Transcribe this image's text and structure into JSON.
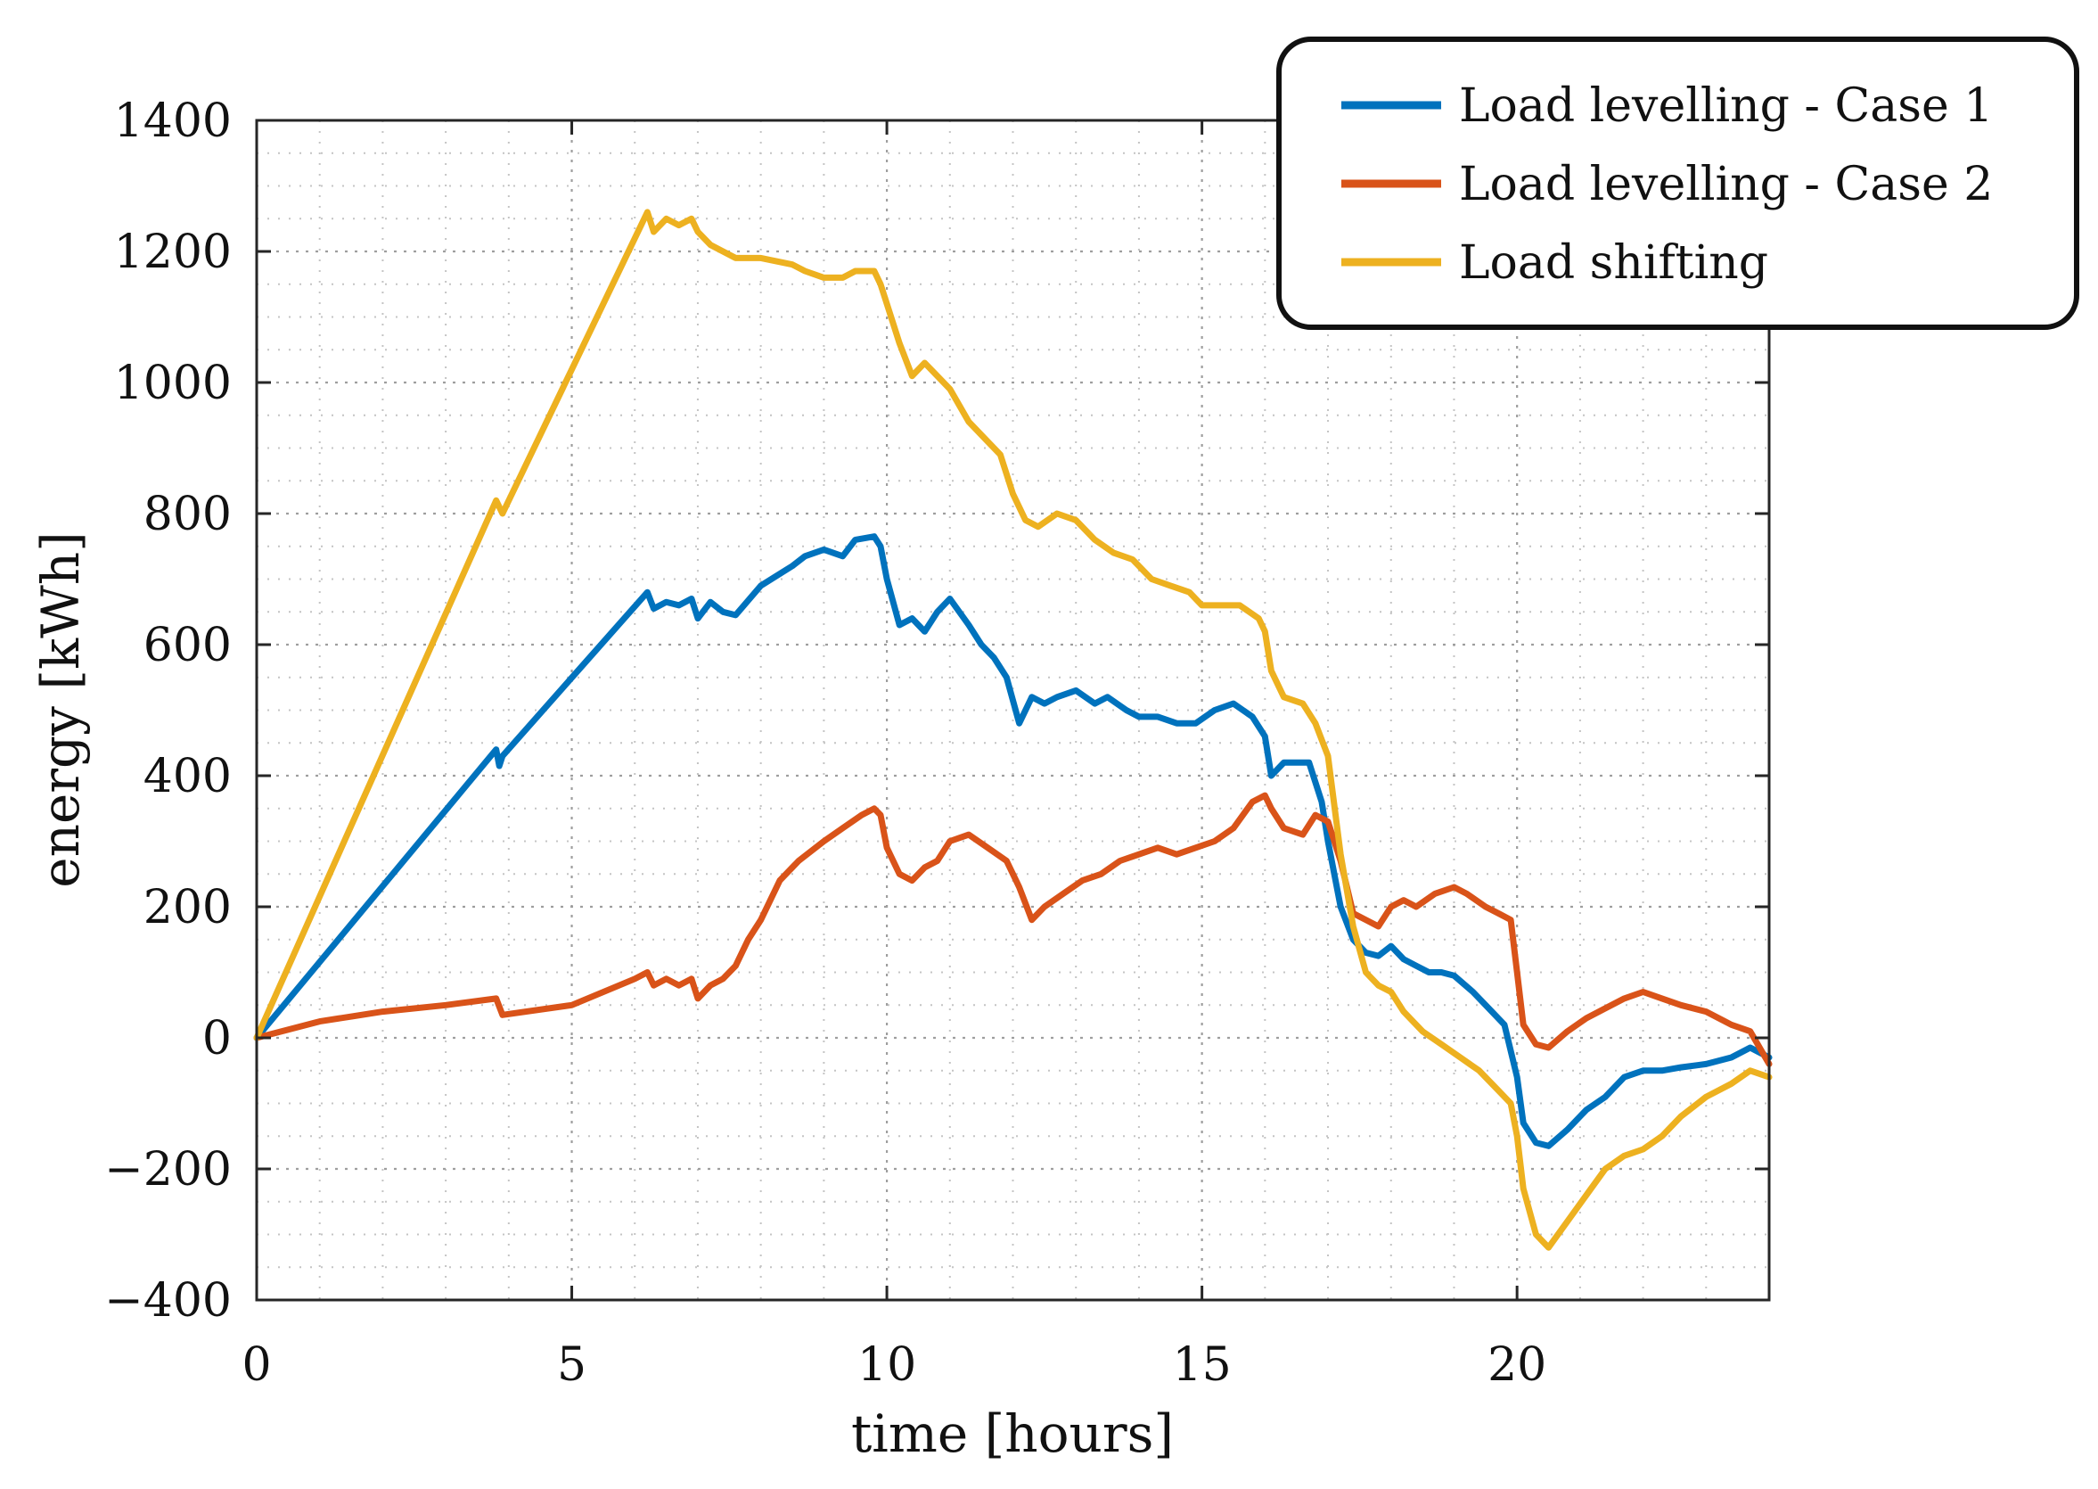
{
  "chart_data": {
    "type": "line",
    "title": "",
    "xlabel": "time [hours]",
    "ylabel": "energy [kWh]",
    "xlim": [
      0,
      24
    ],
    "ylim": [
      -400,
      1400
    ],
    "xticks": [
      0,
      5,
      10,
      15,
      20
    ],
    "yticks": [
      -400,
      -200,
      0,
      200,
      400,
      600,
      800,
      1000,
      1200,
      1400
    ],
    "ytick_labels": [
      "−400",
      "−200",
      "0",
      "200",
      "400",
      "600",
      "800",
      "1000",
      "1200",
      "1400"
    ],
    "grid": true,
    "minor_grid": true,
    "legend_position": "top-right",
    "series": [
      {
        "name": "Load levelling - Case 1",
        "color": "#0072BD",
        "x": [
          0,
          3.8,
          3.85,
          3.9,
          6.2,
          6.3,
          6.5,
          6.7,
          6.9,
          7.0,
          7.2,
          7.4,
          7.6,
          8.0,
          8.5,
          8.7,
          9.0,
          9.3,
          9.5,
          9.8,
          9.9,
          10.0,
          10.2,
          10.4,
          10.6,
          10.8,
          11.0,
          11.3,
          11.5,
          11.7,
          11.9,
          12.1,
          12.3,
          12.5,
          12.7,
          13.0,
          13.3,
          13.5,
          13.8,
          14.0,
          14.3,
          14.6,
          14.9,
          15.2,
          15.5,
          15.8,
          16.0,
          16.1,
          16.3,
          16.5,
          16.7,
          16.9,
          17.0,
          17.2,
          17.4,
          17.6,
          17.8,
          18.0,
          18.2,
          18.4,
          18.6,
          18.8,
          19.0,
          19.3,
          19.6,
          19.8,
          20.0,
          20.1,
          20.3,
          20.5,
          20.8,
          21.1,
          21.4,
          21.7,
          22.0,
          22.3,
          22.6,
          23.0,
          23.4,
          23.7,
          24.0
        ],
        "y": [
          0,
          440,
          415,
          430,
          680,
          655,
          665,
          660,
          670,
          640,
          665,
          650,
          645,
          690,
          720,
          735,
          745,
          735,
          760,
          765,
          750,
          700,
          630,
          640,
          620,
          650,
          670,
          630,
          600,
          580,
          550,
          480,
          520,
          510,
          520,
          530,
          510,
          520,
          500,
          490,
          490,
          480,
          480,
          500,
          510,
          490,
          460,
          400,
          420,
          420,
          420,
          360,
          300,
          200,
          150,
          130,
          125,
          140,
          120,
          110,
          100,
          100,
          95,
          70,
          40,
          20,
          -60,
          -130,
          -160,
          -165,
          -140,
          -110,
          -90,
          -60,
          -50,
          -50,
          -45,
          -40,
          -30,
          -15,
          -30
        ]
      },
      {
        "name": "Load levelling - Case 2",
        "color": "#D95319",
        "x": [
          0,
          1.0,
          2.0,
          3.0,
          3.8,
          3.9,
          5.0,
          6.0,
          6.2,
          6.3,
          6.5,
          6.7,
          6.9,
          7.0,
          7.2,
          7.4,
          7.6,
          7.8,
          8.0,
          8.3,
          8.6,
          9.0,
          9.3,
          9.6,
          9.8,
          9.9,
          10.0,
          10.2,
          10.4,
          10.6,
          10.8,
          11.0,
          11.3,
          11.6,
          11.9,
          12.1,
          12.3,
          12.5,
          12.8,
          13.1,
          13.4,
          13.7,
          14.0,
          14.3,
          14.6,
          14.9,
          15.2,
          15.5,
          15.8,
          16.0,
          16.1,
          16.3,
          16.6,
          16.8,
          17.0,
          17.2,
          17.4,
          17.6,
          17.8,
          18.0,
          18.2,
          18.4,
          18.7,
          19.0,
          19.2,
          19.5,
          19.7,
          19.9,
          20.0,
          20.1,
          20.3,
          20.5,
          20.8,
          21.1,
          21.4,
          21.7,
          22.0,
          22.3,
          22.6,
          23.0,
          23.4,
          23.7,
          24.0
        ],
        "y": [
          0,
          25,
          40,
          50,
          60,
          35,
          50,
          90,
          100,
          80,
          90,
          80,
          90,
          60,
          80,
          90,
          110,
          150,
          180,
          240,
          270,
          300,
          320,
          340,
          350,
          340,
          290,
          250,
          240,
          260,
          270,
          300,
          310,
          290,
          270,
          230,
          180,
          200,
          220,
          240,
          250,
          270,
          280,
          290,
          280,
          290,
          300,
          320,
          360,
          370,
          350,
          320,
          310,
          340,
          330,
          270,
          190,
          180,
          170,
          200,
          210,
          200,
          220,
          230,
          220,
          200,
          190,
          180,
          100,
          20,
          -10,
          -15,
          10,
          30,
          45,
          60,
          70,
          60,
          50,
          40,
          20,
          10,
          -40
        ]
      },
      {
        "name": "Load shifting",
        "color": "#EDB120",
        "x": [
          0,
          3.8,
          3.9,
          6.2,
          6.3,
          6.5,
          6.7,
          6.9,
          7.0,
          7.2,
          7.4,
          7.6,
          8.0,
          8.5,
          8.7,
          9.0,
          9.3,
          9.5,
          9.8,
          9.9,
          10.0,
          10.2,
          10.4,
          10.6,
          10.8,
          11.0,
          11.3,
          11.6,
          11.8,
          12.0,
          12.2,
          12.4,
          12.7,
          13.0,
          13.3,
          13.6,
          13.9,
          14.2,
          14.5,
          14.8,
          15.0,
          15.3,
          15.6,
          15.9,
          16.0,
          16.1,
          16.3,
          16.6,
          16.8,
          17.0,
          17.2,
          17.4,
          17.6,
          17.8,
          18.0,
          18.2,
          18.5,
          18.8,
          19.1,
          19.4,
          19.7,
          19.9,
          20.0,
          20.1,
          20.3,
          20.5,
          20.8,
          21.1,
          21.4,
          21.7,
          22.0,
          22.3,
          22.6,
          23.0,
          23.4,
          23.7,
          24.0
        ],
        "y": [
          0,
          820,
          800,
          1260,
          1230,
          1250,
          1240,
          1250,
          1230,
          1210,
          1200,
          1190,
          1190,
          1180,
          1170,
          1160,
          1160,
          1170,
          1170,
          1150,
          1120,
          1060,
          1010,
          1030,
          1010,
          990,
          940,
          910,
          890,
          830,
          790,
          780,
          800,
          790,
          760,
          740,
          730,
          700,
          690,
          680,
          660,
          660,
          660,
          640,
          620,
          560,
          520,
          510,
          480,
          430,
          280,
          170,
          100,
          80,
          70,
          40,
          10,
          -10,
          -30,
          -50,
          -80,
          -100,
          -150,
          -230,
          -300,
          -320,
          -280,
          -240,
          -200,
          -180,
          -170,
          -150,
          -120,
          -90,
          -70,
          -50,
          -60
        ]
      }
    ]
  }
}
